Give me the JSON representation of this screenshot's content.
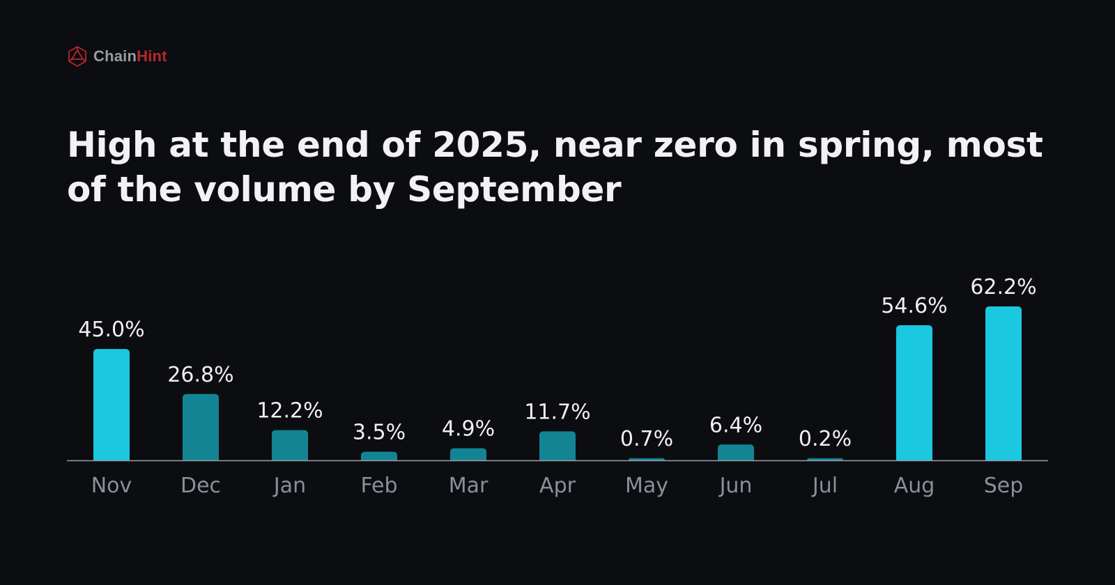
{
  "brand": {
    "name_part1": "Chain",
    "name_part2": "Hint",
    "icon": "network-polygon-logo",
    "colors": {
      "part1": "#9a9ba2",
      "part2": "#b8272b"
    }
  },
  "title": "High at the end of 2025, near zero in spring, most of the volume by September",
  "chart_data": {
    "type": "bar",
    "title": "High at the end of 2025, near zero in spring, most of the volume by September",
    "xlabel": "",
    "ylabel": "",
    "categories": [
      "Nov",
      "Dec",
      "Jan",
      "Feb",
      "Mar",
      "Apr",
      "May",
      "Jun",
      "Jul",
      "Aug",
      "Sep"
    ],
    "values": [
      45.0,
      26.8,
      12.2,
      3.5,
      4.9,
      11.7,
      0.7,
      6.4,
      0.2,
      54.6,
      62.2
    ],
    "value_labels": [
      "45.0%",
      "26.8%",
      "12.2%",
      "3.5%",
      "4.9%",
      "11.7%",
      "0.7%",
      "6.4%",
      "0.2%",
      "54.6%",
      "62.2%"
    ],
    "highlighted": [
      "Nov",
      "Aug",
      "Sep"
    ],
    "ylim": [
      0,
      62.2
    ],
    "grid": false,
    "legend": "none",
    "colors": {
      "highlight": "#1ac8e0",
      "default": "#138494",
      "baseline": "#9aa0aa",
      "value_text": "#f0f0f2",
      "category_text": "#8c8f99"
    }
  }
}
